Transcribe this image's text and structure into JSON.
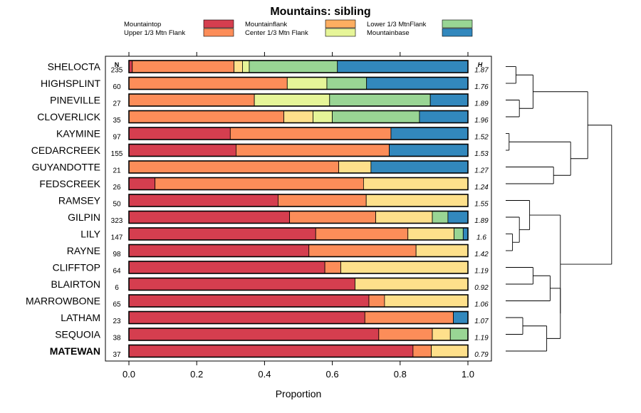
{
  "chart_data": {
    "type": "bar",
    "stacked": true,
    "orientation": "horizontal",
    "title": "Mountains: sibling",
    "xlabel": "Proportion",
    "xlim": [
      0,
      1
    ],
    "xticks": [
      "0.0",
      "0.2",
      "0.4",
      "0.6",
      "0.8",
      "1.0"
    ],
    "xtick_values": [
      0,
      0.2,
      0.4,
      0.6,
      0.8,
      1.0
    ],
    "n_header": "N",
    "h_header": "H",
    "legend": [
      {
        "name": "Mountaintop",
        "color": "#d53e4f"
      },
      {
        "name": "Mountainflank",
        "color": "#fdae61"
      },
      {
        "name": "Lower 1/3 MtnFlank",
        "color": "#99d594"
      },
      {
        "name": "Upper 1/3 Mtn Flank",
        "color": "#fc8d59"
      },
      {
        "name": "Center 1/3 Mtn Flank",
        "color": "#e6f598"
      },
      {
        "name": "Mountainbase",
        "color": "#3288bd"
      }
    ],
    "series_colors": [
      "#d53e4f",
      "#fc8d59",
      "#fee08b",
      "#e6f598",
      "#99d594",
      "#3288bd"
    ],
    "rows": [
      {
        "name": "SHELOCTA",
        "n": "235",
        "h": "1.87",
        "bold": false,
        "values": [
          0.01,
          0.3,
          0.025,
          0.02,
          0.26,
          0.385
        ]
      },
      {
        "name": "HIGHSPLINT",
        "n": "60",
        "h": "1.76",
        "bold": false,
        "values": [
          0,
          0.467,
          0,
          0.117,
          0.117,
          0.299
        ]
      },
      {
        "name": "PINEVILLE",
        "n": "27",
        "h": "1.89",
        "bold": false,
        "values": [
          0,
          0.37,
          0,
          0.222,
          0.297,
          0.111
        ]
      },
      {
        "name": "CLOVERLICK",
        "n": "35",
        "h": "1.96",
        "bold": false,
        "values": [
          0,
          0.457,
          0.086,
          0.057,
          0.257,
          0.143
        ]
      },
      {
        "name": "KAYMINE",
        "n": "97",
        "h": "1.52",
        "bold": false,
        "values": [
          0.299,
          0.474,
          0,
          0,
          0,
          0.227
        ]
      },
      {
        "name": "CEDARCREEK",
        "n": "155",
        "h": "1.53",
        "bold": false,
        "values": [
          0.316,
          0.452,
          0,
          0,
          0,
          0.232
        ]
      },
      {
        "name": "GUYANDOTTE",
        "n": "21",
        "h": "1.27",
        "bold": false,
        "values": [
          0,
          0.619,
          0.095,
          0,
          0,
          0.286
        ]
      },
      {
        "name": "FEDSCREEK",
        "n": "26",
        "h": "1.24",
        "bold": false,
        "values": [
          0.077,
          0.615,
          0.308,
          0,
          0,
          0
        ]
      },
      {
        "name": "RAMSEY",
        "n": "50",
        "h": "1.55",
        "bold": false,
        "values": [
          0.44,
          0.26,
          0.3,
          0,
          0,
          0
        ]
      },
      {
        "name": "GILPIN",
        "n": "323",
        "h": "1.89",
        "bold": false,
        "values": [
          0.474,
          0.254,
          0.167,
          0,
          0.046,
          0.059
        ]
      },
      {
        "name": "LILY",
        "n": "147",
        "h": "1.6",
        "bold": false,
        "values": [
          0.551,
          0.272,
          0.136,
          0,
          0.027,
          0.014
        ]
      },
      {
        "name": "RAYNE",
        "n": "98",
        "h": "1.42",
        "bold": false,
        "values": [
          0.531,
          0.316,
          0.153,
          0,
          0,
          0
        ]
      },
      {
        "name": "CLIFFTOP",
        "n": "64",
        "h": "1.19",
        "bold": false,
        "values": [
          0.578,
          0.047,
          0.375,
          0,
          0,
          0
        ]
      },
      {
        "name": "BLAIRTON",
        "n": "6",
        "h": "0.92",
        "bold": false,
        "values": [
          0.667,
          0,
          0.333,
          0,
          0,
          0
        ]
      },
      {
        "name": "MARROWBONE",
        "n": "65",
        "h": "1.06",
        "bold": false,
        "values": [
          0.708,
          0.046,
          0.246,
          0,
          0,
          0
        ]
      },
      {
        "name": "LATHAM",
        "n": "23",
        "h": "1.07",
        "bold": false,
        "values": [
          0.696,
          0.261,
          0,
          0,
          0,
          0.043
        ]
      },
      {
        "name": "SEQUOIA",
        "n": "38",
        "h": "1.19",
        "bold": false,
        "values": [
          0.737,
          0.158,
          0.053,
          0,
          0.052,
          0
        ]
      },
      {
        "name": "MATEWAN",
        "n": "37",
        "h": "0.79",
        "bold": true,
        "values": [
          0.838,
          0.054,
          0.108,
          0,
          0,
          0
        ]
      }
    ],
    "dendrogram": {
      "type": "hierarchical-clustering",
      "merges": [
        [
          0,
          1
        ],
        [
          4,
          5
        ],
        [
          2,
          3
        ],
        [
          -1,
          -3
        ],
        [
          6,
          7
        ],
        [
          -2,
          -5
        ],
        [
          -4,
          -6
        ],
        [
          15,
          16
        ],
        [
          -8,
          17
        ],
        [
          12,
          13
        ],
        [
          -10,
          14
        ],
        [
          -9,
          -11
        ],
        [
          10,
          11
        ],
        [
          9,
          -13
        ],
        [
          8,
          -14
        ],
        [
          -12,
          -15
        ],
        [
          -7,
          -16
        ]
      ],
      "heights": [
        0.03,
        0.01,
        0.04,
        0.08,
        0.14,
        0.19,
        0.24,
        0.05,
        0.12,
        0.08,
        0.13,
        0.16,
        0.02,
        0.04,
        0.07,
        0.16,
        0.31
      ]
    }
  }
}
